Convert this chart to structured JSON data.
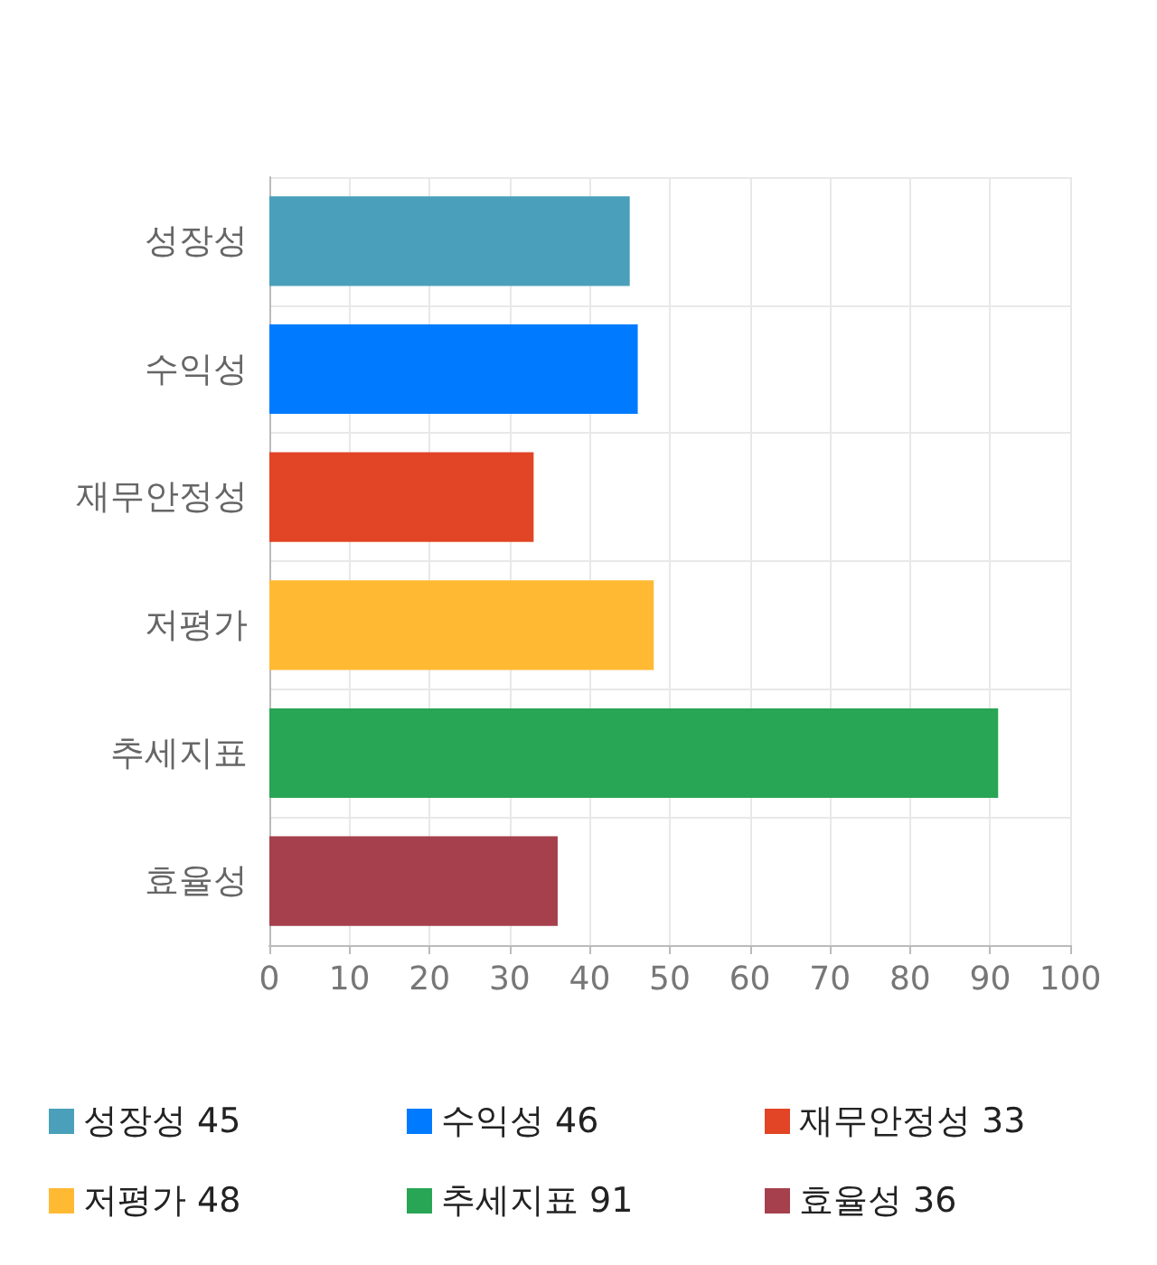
{
  "chart_data": {
    "type": "bar",
    "orientation": "horizontal",
    "categories": [
      "성장성",
      "수익성",
      "재무안정성",
      "저평가",
      "추세지표",
      "효율성"
    ],
    "series": [
      {
        "name": "성장성 45",
        "color": "#4aa0bb",
        "values": [
          45,
          null,
          null,
          null,
          null,
          null
        ]
      },
      {
        "name": "수익성 46",
        "color": "#007bff",
        "values": [
          null,
          46,
          null,
          null,
          null,
          null
        ]
      },
      {
        "name": "재무안정성 33",
        "color": "#e24426",
        "values": [
          null,
          null,
          33,
          null,
          null,
          null
        ]
      },
      {
        "name": "저평가 48",
        "color": "#ffb933",
        "values": [
          null,
          null,
          null,
          48,
          null,
          null
        ]
      },
      {
        "name": "추세지표 91",
        "color": "#28a555",
        "values": [
          null,
          null,
          null,
          null,
          91,
          null
        ]
      },
      {
        "name": "효율성 36",
        "color": "#a6404d",
        "values": [
          null,
          null,
          null,
          null,
          null,
          36
        ]
      }
    ],
    "xlim": [
      0,
      100
    ],
    "xticks": [
      0,
      10,
      20,
      30,
      40,
      50,
      60,
      70,
      80,
      90,
      100
    ],
    "grid": true,
    "legend": "bottom"
  }
}
